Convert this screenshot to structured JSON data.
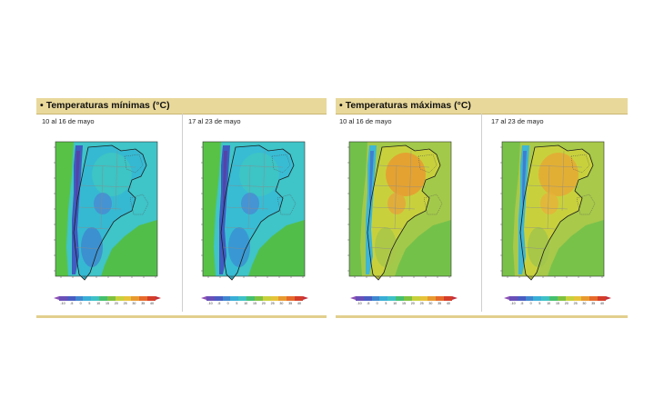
{
  "colorscale": {
    "labels": [
      "-10",
      "-5",
      "0",
      "5",
      "10",
      "15",
      "20",
      "25",
      "30",
      "35",
      "40"
    ],
    "colors": [
      "#8e4fb3",
      "#6a4fb8",
      "#4a5cc2",
      "#3f86cf",
      "#39aed6",
      "#3ec1c6",
      "#45c06e",
      "#7fc23f",
      "#c8d13c",
      "#e7c33a",
      "#e99a2f",
      "#e66a2a",
      "#d43d2a",
      "#c22e3c"
    ]
  },
  "panels": [
    {
      "id": "min",
      "title": "Temperaturas mínimas (°C)",
      "bullet": "•",
      "maps": [
        {
          "period": "10 al 16 de mayo",
          "variant": "min1"
        },
        {
          "period": "17 al 23 de mayo",
          "variant": "min2"
        }
      ]
    },
    {
      "id": "max",
      "title": "Temperaturas máximas (°C)",
      "bullet": "•",
      "maps": [
        {
          "period": "10 al 16 de mayo",
          "variant": "max1"
        },
        {
          "period": "17 al 23 de mayo",
          "variant": "max2"
        }
      ]
    }
  ]
}
